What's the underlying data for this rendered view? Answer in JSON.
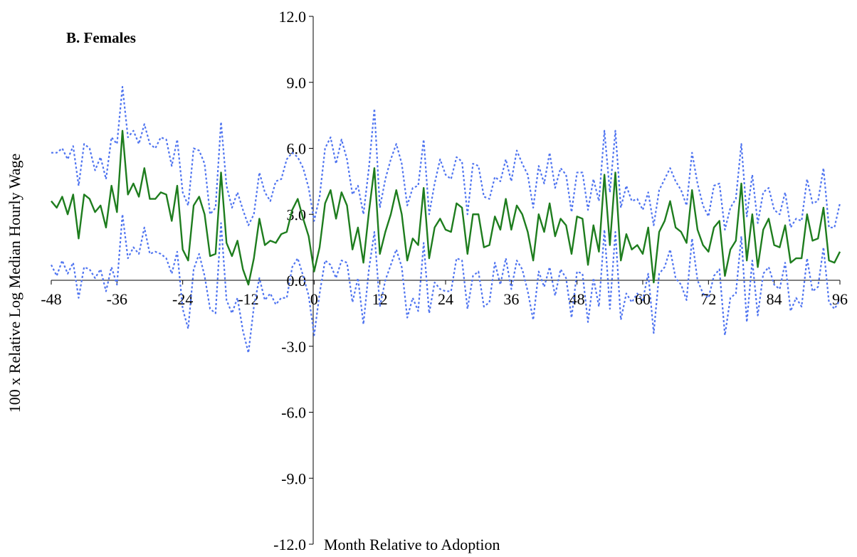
{
  "chart_data": {
    "type": "line",
    "panel_title": "B. Females",
    "xlabel": "Month Relative to Adoption",
    "ylabel": "100 x Relative Log Median Hourly Wage",
    "xlim": [
      -48,
      96
    ],
    "ylim": [
      -12,
      12
    ],
    "x_ticks": [
      -48,
      -36,
      -24,
      -12,
      0,
      12,
      24,
      36,
      48,
      60,
      72,
      84,
      96
    ],
    "x_tick_labels": [
      "-48",
      "-36",
      "-24",
      "-12",
      "0",
      "12",
      "24",
      "36",
      "48",
      "60",
      "72",
      "84",
      "96"
    ],
    "y_ticks": [
      12,
      9,
      6,
      3,
      0,
      -3,
      -6,
      -9,
      -12
    ],
    "y_tick_labels": [
      "12.0",
      "9.0",
      "6.0",
      "3.0",
      "0.0",
      "-3.0",
      "-6.0",
      "-9.0",
      "-12.0"
    ],
    "grid": false,
    "series": [
      {
        "role": "estimate",
        "color": "#1e7d1e",
        "style": "solid",
        "x": [
          -48,
          -47,
          -46,
          -45,
          -44,
          -43,
          -42,
          -41,
          -40,
          -39,
          -38,
          -37,
          -36,
          -35,
          -34,
          -33,
          -32,
          -31,
          -30,
          -29,
          -28,
          -27,
          -26,
          -25,
          -24,
          -23,
          -22,
          -21,
          -20,
          -19,
          -18,
          -17,
          -16,
          -15,
          -14,
          -13,
          -12,
          -11,
          -10,
          -9,
          -8,
          -7,
          -6,
          -5,
          -4,
          -3,
          -2,
          -1,
          0,
          1,
          2,
          3,
          4,
          5,
          6,
          7,
          8,
          9,
          10,
          11,
          12,
          13,
          14,
          15,
          16,
          17,
          18,
          19,
          20,
          21,
          22,
          23,
          24,
          25,
          26,
          27,
          28,
          29,
          30,
          31,
          32,
          33,
          34,
          35,
          36,
          37,
          38,
          39,
          40,
          41,
          42,
          43,
          44,
          45,
          46,
          47,
          48,
          49,
          50,
          51,
          52,
          53,
          54,
          55,
          56,
          57,
          58,
          59,
          60,
          61,
          62,
          63,
          64,
          65,
          66,
          67,
          68,
          69,
          70,
          71,
          72,
          73,
          74,
          75,
          76,
          77,
          78,
          79,
          80,
          81,
          82,
          83,
          84,
          85,
          86,
          87,
          88,
          89,
          90,
          91,
          92,
          93,
          94,
          95,
          96
        ],
        "values": [
          3.6,
          3.3,
          3.8,
          3.0,
          3.9,
          1.9,
          3.9,
          3.7,
          3.1,
          3.4,
          2.4,
          4.3,
          3.1,
          6.8,
          3.9,
          4.4,
          3.8,
          5.1,
          3.7,
          3.7,
          4.0,
          3.9,
          2.7,
          4.3,
          1.4,
          0.9,
          3.4,
          3.8,
          3.0,
          1.1,
          1.2,
          4.9,
          1.7,
          1.1,
          1.8,
          0.5,
          -0.2,
          1.0,
          2.8,
          1.6,
          1.8,
          1.7,
          2.1,
          2.2,
          3.2,
          3.7,
          2.8,
          2.0,
          0.4,
          1.5,
          3.5,
          4.1,
          2.8,
          4.0,
          3.4,
          1.4,
          2.4,
          0.8,
          3.1,
          5.1,
          1.2,
          2.2,
          3.0,
          4.1,
          3.0,
          0.9,
          1.9,
          1.6,
          4.2,
          1.0,
          2.4,
          2.8,
          2.3,
          2.2,
          3.5,
          3.3,
          1.2,
          3.0,
          3.0,
          1.5,
          1.6,
          2.9,
          2.3,
          3.7,
          2.3,
          3.4,
          3.0,
          2.2,
          0.9,
          3.0,
          2.2,
          3.5,
          2.0,
          2.8,
          2.5,
          1.2,
          2.9,
          2.8,
          0.7,
          2.5,
          1.3,
          4.8,
          1.6,
          4.9,
          0.9,
          2.1,
          1.4,
          1.6,
          1.2,
          2.4,
          -0.1,
          2.2,
          2.7,
          3.6,
          2.4,
          2.2,
          1.7,
          4.1,
          2.3,
          1.6,
          1.3,
          2.4,
          2.7,
          0.2,
          1.4,
          1.8,
          4.4,
          0.9,
          3.0,
          0.6,
          2.3,
          2.8,
          1.6,
          1.5,
          2.5,
          0.8,
          1.0,
          1.0,
          3.0,
          1.8,
          1.9,
          3.3,
          0.9,
          0.8,
          1.3
        ]
      },
      {
        "role": "upper",
        "color": "#4f74f0",
        "style": "dotted",
        "x": [
          -48,
          -47,
          -46,
          -45,
          -44,
          -43,
          -42,
          -41,
          -40,
          -39,
          -38,
          -37,
          -36,
          -35,
          -34,
          -33,
          -32,
          -31,
          -30,
          -29,
          -28,
          -27,
          -26,
          -25,
          -24,
          -23,
          -22,
          -21,
          -20,
          -19,
          -18,
          -17,
          -16,
          -15,
          -14,
          -13,
          -12,
          -11,
          -10,
          -9,
          -8,
          -7,
          -6,
          -5,
          -4,
          -3,
          -2,
          -1,
          0,
          1,
          2,
          3,
          4,
          5,
          6,
          7,
          8,
          9,
          10,
          11,
          12,
          13,
          14,
          15,
          16,
          17,
          18,
          19,
          20,
          21,
          22,
          23,
          24,
          25,
          26,
          27,
          28,
          29,
          30,
          31,
          32,
          33,
          34,
          35,
          36,
          37,
          38,
          39,
          40,
          41,
          42,
          43,
          44,
          45,
          46,
          47,
          48,
          49,
          50,
          51,
          52,
          53,
          54,
          55,
          56,
          57,
          58,
          59,
          60,
          61,
          62,
          63,
          64,
          65,
          66,
          67,
          68,
          69,
          70,
          71,
          72,
          73,
          74,
          75,
          76,
          77,
          78,
          79,
          80,
          81,
          82,
          83,
          84,
          85,
          86,
          87,
          88,
          89,
          90,
          91,
          92,
          93,
          94,
          95,
          96
        ],
        "values": [
          5.8,
          5.8,
          6.0,
          5.5,
          6.1,
          4.3,
          6.2,
          6.0,
          5.0,
          5.6,
          4.6,
          6.5,
          6.2,
          8.8,
          6.5,
          6.8,
          6.2,
          7.1,
          6.2,
          6.0,
          6.5,
          6.4,
          5.2,
          6.4,
          4.0,
          3.4,
          6.0,
          5.9,
          5.3,
          3.0,
          3.3,
          7.2,
          4.3,
          3.3,
          4.0,
          3.2,
          2.5,
          3.0,
          4.9,
          4.0,
          3.6,
          4.5,
          4.6,
          5.5,
          5.8,
          5.6,
          5.1,
          4.2,
          2.7,
          3.8,
          6.0,
          6.5,
          5.3,
          6.4,
          5.5,
          3.9,
          4.3,
          3.0,
          5.1,
          7.8,
          3.3,
          4.6,
          5.5,
          6.2,
          5.3,
          3.4,
          4.2,
          4.3,
          6.4,
          3.0,
          4.4,
          5.5,
          4.8,
          4.6,
          5.6,
          5.4,
          3.0,
          5.3,
          5.2,
          3.8,
          3.7,
          4.7,
          4.5,
          5.5,
          4.5,
          5.9,
          5.3,
          4.8,
          3.3,
          5.2,
          4.4,
          5.8,
          4.2,
          5.1,
          4.8,
          3.1,
          4.9,
          4.9,
          3.2,
          4.6,
          3.6,
          6.8,
          4.0,
          6.8,
          3.3,
          4.3,
          3.6,
          3.7,
          3.2,
          4.0,
          2.5,
          4.1,
          4.6,
          5.1,
          4.5,
          4.1,
          3.4,
          5.8,
          4.4,
          3.4,
          2.9,
          4.3,
          4.4,
          2.3,
          3.3,
          3.7,
          6.2,
          2.9,
          4.8,
          2.6,
          4.0,
          4.2,
          3.2,
          3.0,
          4.0,
          2.4,
          2.8,
          2.7,
          4.6,
          3.5,
          3.6,
          5.1,
          2.4,
          2.4,
          3.5
        ]
      },
      {
        "role": "lower",
        "color": "#4f74f0",
        "style": "dotted",
        "x": [
          -48,
          -47,
          -46,
          -45,
          -44,
          -43,
          -42,
          -41,
          -40,
          -39,
          -38,
          -37,
          -36,
          -35,
          -34,
          -33,
          -32,
          -31,
          -30,
          -29,
          -28,
          -27,
          -26,
          -25,
          -24,
          -23,
          -22,
          -21,
          -20,
          -19,
          -18,
          -17,
          -16,
          -15,
          -14,
          -13,
          -12,
          -11,
          -10,
          -9,
          -8,
          -7,
          -6,
          -5,
          -4,
          -3,
          -2,
          -1,
          0,
          1,
          2,
          3,
          4,
          5,
          6,
          7,
          8,
          9,
          10,
          11,
          12,
          13,
          14,
          15,
          16,
          17,
          18,
          19,
          20,
          21,
          22,
          23,
          24,
          25,
          26,
          27,
          28,
          29,
          30,
          31,
          32,
          33,
          34,
          35,
          36,
          37,
          38,
          39,
          40,
          41,
          42,
          43,
          44,
          45,
          46,
          47,
          48,
          49,
          50,
          51,
          52,
          53,
          54,
          55,
          56,
          57,
          58,
          59,
          60,
          61,
          62,
          63,
          64,
          65,
          66,
          67,
          68,
          69,
          70,
          71,
          72,
          73,
          74,
          75,
          76,
          77,
          78,
          79,
          80,
          81,
          82,
          83,
          84,
          85,
          86,
          87,
          88,
          89,
          90,
          91,
          92,
          93,
          94,
          95,
          96
        ],
        "values": [
          0.7,
          0.2,
          0.9,
          0.3,
          0.8,
          -0.8,
          0.6,
          0.5,
          0.1,
          0.5,
          -0.5,
          0.6,
          -0.2,
          3.0,
          1.0,
          1.5,
          1.2,
          2.4,
          1.2,
          1.3,
          1.2,
          1.0,
          0.3,
          1.3,
          -1.3,
          -2.2,
          0.5,
          1.2,
          0.2,
          -1.3,
          -1.5,
          2.6,
          -0.9,
          -1.5,
          -0.8,
          -2.3,
          -3.3,
          -1.2,
          0.1,
          -0.9,
          -0.6,
          -1.1,
          -0.8,
          -0.8,
          0.6,
          1.0,
          0.2,
          -0.7,
          -2.5,
          -0.6,
          0.9,
          0.7,
          0.1,
          0.9,
          0.8,
          -1.0,
          0.1,
          -2.0,
          0.5,
          2.2,
          -1.2,
          0.0,
          0.7,
          1.4,
          0.6,
          -1.7,
          -0.8,
          -1.4,
          1.7,
          -1.5,
          -0.1,
          -0.4,
          -0.5,
          -0.5,
          1.0,
          0.9,
          -1.3,
          0.2,
          0.4,
          -1.2,
          -1.0,
          0.8,
          -0.2,
          1.0,
          -0.4,
          0.9,
          0.5,
          -0.5,
          -1.8,
          0.4,
          -0.3,
          0.6,
          -0.7,
          0.5,
          0.1,
          -1.7,
          0.4,
          0.3,
          -1.9,
          0.1,
          -1.2,
          2.3,
          -1.3,
          2.2,
          -1.8,
          -0.6,
          -1.0,
          -0.6,
          -0.9,
          0.3,
          -2.4,
          0.3,
          0.6,
          1.4,
          0.1,
          -0.2,
          -0.9,
          1.9,
          0.0,
          -0.6,
          -0.8,
          0.2,
          0.5,
          -2.5,
          -0.8,
          -0.6,
          2.0,
          -1.9,
          0.9,
          -1.6,
          0.3,
          0.6,
          -0.2,
          -0.4,
          0.8,
          -1.4,
          -0.8,
          -1.2,
          1.0,
          -0.5,
          -0.3,
          1.5,
          -1.0,
          -1.3,
          -0.9
        ]
      }
    ]
  }
}
